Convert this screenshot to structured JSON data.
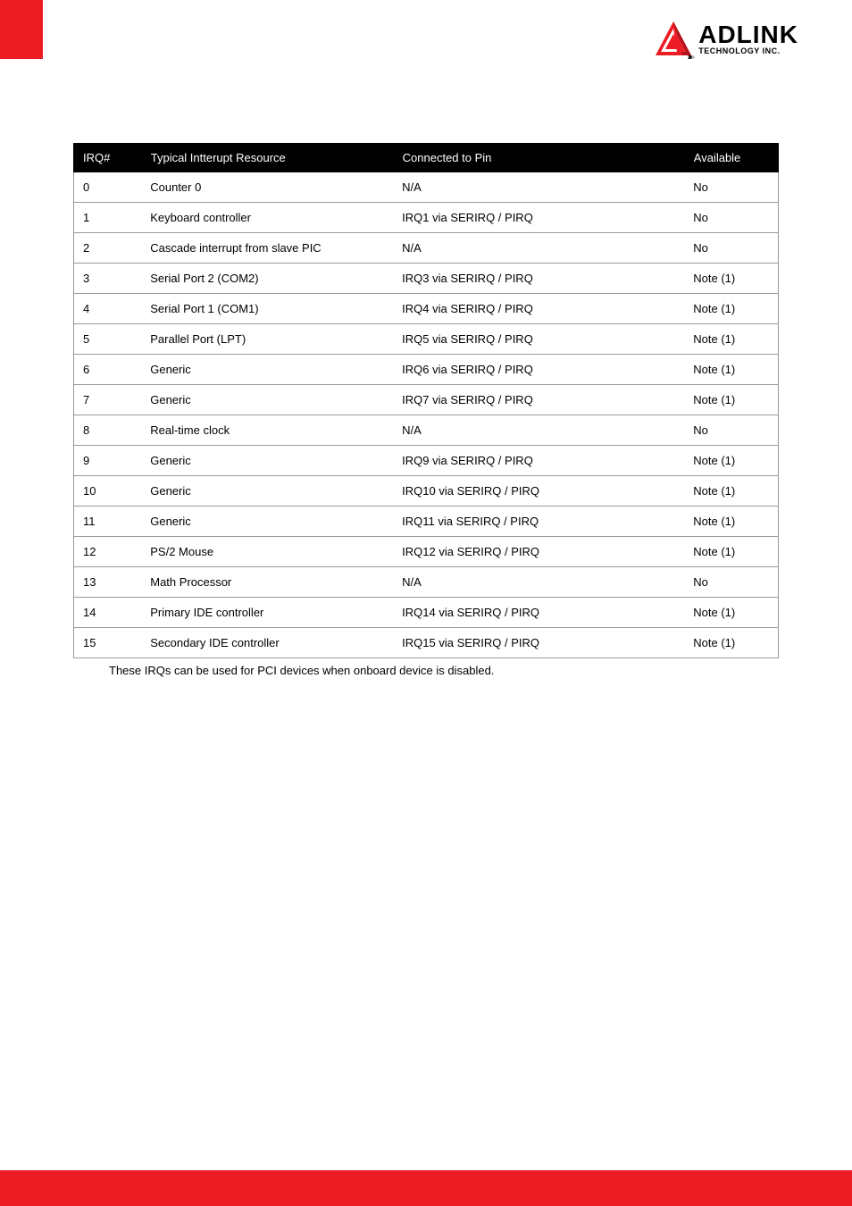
{
  "brand": {
    "name": "ADLINK",
    "subtitle": "TECHNOLOGY INC.",
    "accent_color": "#ed1c24",
    "logo_triangle_color": "#ed1c24",
    "logo_shadow_color": "#231f20"
  },
  "table": {
    "columns": [
      "IRQ#",
      "Typical Intterupt Resource",
      "Connected to Pin",
      "Available"
    ],
    "rows": [
      [
        "0",
        "Counter 0",
        "N/A",
        "No"
      ],
      [
        "1",
        "Keyboard controller",
        "IRQ1 via SERIRQ  / PIRQ",
        "No"
      ],
      [
        "2",
        "Cascade interrupt from slave PIC",
        "N/A",
        "No"
      ],
      [
        "3",
        "Serial Port 2 (COM2)",
        "IRQ3 via SERIRQ  / PIRQ",
        "Note (1)"
      ],
      [
        "4",
        "Serial Port 1 (COM1)",
        "IRQ4 via SERIRQ  / PIRQ",
        "Note (1)"
      ],
      [
        "5",
        "Parallel Port (LPT)",
        "IRQ5 via SERIRQ  / PIRQ",
        "Note (1)"
      ],
      [
        "6",
        "Generic",
        "IRQ6 via SERIRQ  / PIRQ",
        "Note (1)"
      ],
      [
        "7",
        "Generic",
        "IRQ7 via SERIRQ  / PIRQ",
        "Note (1)"
      ],
      [
        "8",
        "Real-time clock",
        "N/A",
        "No"
      ],
      [
        "9",
        "Generic",
        "IRQ9 via SERIRQ  / PIRQ",
        "Note (1)"
      ],
      [
        "10",
        "Generic",
        "IRQ10 via SERIRQ / PIRQ",
        "Note (1)"
      ],
      [
        "11",
        "Generic",
        "IRQ11 via SERIRQ / PIRQ",
        "Note (1)"
      ],
      [
        "12",
        "PS/2 Mouse",
        "IRQ12 via SERIRQ  / PIRQ",
        "Note (1)"
      ],
      [
        "13",
        "Math Processor",
        "N/A",
        "No"
      ],
      [
        "14",
        "Primary IDE controller",
        "IRQ14 via SERIRQ  / PIRQ",
        "Note (1)"
      ],
      [
        "15",
        "Secondary IDE controller",
        "IRQ15 via SERIRQ  / PIRQ",
        "Note (1)"
      ]
    ],
    "header_bg": "#000000",
    "header_fg": "#ffffff",
    "border_color": "#999999",
    "font_size": 13
  },
  "footnote": "These IRQs can be used for PCI devices when onboard device is disabled."
}
